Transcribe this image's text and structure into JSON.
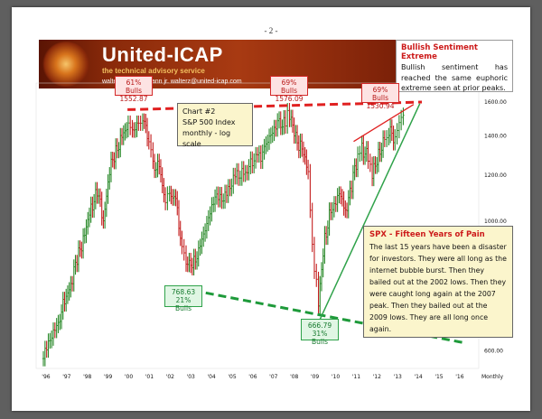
{
  "page_number": "- 2 -",
  "banner": {
    "brand": "United-ICAP",
    "tagline": "the technical advisory service",
    "contact": "walter j. zimmermann jr.   walterz@united-icap.com"
  },
  "sentiment_box": {
    "title": "Bullish Sentiment Extreme",
    "body": "Bullish sentiment has reached the same euphoric extreme seen at prior peaks."
  },
  "chart_label": {
    "line1": "Chart #2",
    "line2": "S&P 500 Index",
    "line3": "monthly - log scale"
  },
  "pain_box": {
    "title": "SPX - Fifteen Years of Pain",
    "body": "The last 15 years have been a disaster for investors. They were all long as the internet bubble burst. Then they bailed out at the 2002 lows. Then they were caught long again at the 2007 peak. Then they bailed out at the 2009 lows. They are all long once again."
  },
  "callouts": {
    "peak_2000": {
      "line1": "61% Bulls",
      "line2": "1552.87"
    },
    "peak_2007": {
      "line1": "69% Bulls",
      "line2": "1576.09"
    },
    "peak_2013": {
      "line1": "69% Bulls",
      "line2": "1530.94"
    },
    "low_2002": {
      "line1": "768.63",
      "line2": "21% Bulls"
    },
    "low_2009": {
      "line1": "666.79",
      "line2": "31% Bulls"
    }
  },
  "colors": {
    "up_bar": "#2b8a2b",
    "down_bar": "#c41e1e",
    "red_line": "#e02020",
    "green_line": "#2fa24a",
    "green_dashed": "#1e9a3a"
  },
  "chart_data": {
    "type": "ohlc",
    "title": "",
    "xlabel": "Monthly",
    "ylabel": "",
    "scale": "log",
    "ylim": [
      560,
      1700
    ],
    "x_tick_labels": [
      "'96",
      "'97",
      "'98",
      "'99",
      "'00",
      "'01",
      "'02",
      "'03",
      "'04",
      "'05",
      "'06",
      "'07",
      "'08",
      "'09",
      "'10",
      "'11",
      "'12",
      "'13",
      "'14",
      "'15",
      "'16"
    ],
    "y_tick_labels": [
      "1600.00",
      "1400.00",
      "1200.00",
      "1000.00",
      "600.00"
    ],
    "y_tick_values": [
      1600,
      1400,
      1200,
      1000,
      600
    ],
    "series": [
      {
        "x": [
          1995.9,
          1996.3,
          1996.7,
          1997.0,
          1997.3,
          1997.6,
          1997.9,
          1998.2,
          1998.5,
          1998.8,
          1999.1,
          1999.4,
          1999.7,
          2000.0,
          2000.2,
          2000.5,
          2000.7,
          2001.0,
          2001.2,
          2001.5,
          2001.8,
          2002.0,
          2002.3,
          2002.6,
          2002.8,
          2003.1,
          2003.4,
          2003.8,
          2004.2,
          2004.6,
          2005.0,
          2005.5,
          2006.0,
          2006.5,
          2006.9,
          2007.3,
          2007.6,
          2007.8,
          2008.1,
          2008.4,
          2008.7,
          2008.9,
          2009.1,
          2009.2,
          2009.5,
          2009.8,
          2010.2,
          2010.5,
          2010.8,
          2011.1,
          2011.3,
          2011.6,
          2011.8,
          2012.1,
          2012.4,
          2012.6,
          2012.9,
          2013.1,
          2013.3
        ],
        "values": [
          600,
          650,
          690,
          740,
          800,
          880,
          950,
          1050,
          1130,
          1000,
          1220,
          1320,
          1390,
          1460,
          1430,
          1470,
          1500,
          1380,
          1250,
          1230,
          1080,
          1120,
          1080,
          900,
          860,
          830,
          900,
          1000,
          1120,
          1110,
          1180,
          1200,
          1270,
          1300,
          1380,
          1460,
          1490,
          1520,
          1380,
          1340,
          1200,
          900,
          780,
          720,
          930,
          1050,
          1120,
          1040,
          1150,
          1300,
          1340,
          1280,
          1190,
          1310,
          1370,
          1420,
          1400,
          1470,
          1520
        ]
      }
    ],
    "annotations": [
      {
        "type": "peak",
        "date": "2000-03",
        "value": 1552.87,
        "label": "61% Bulls"
      },
      {
        "type": "peak",
        "date": "2007-10",
        "value": 1576.09,
        "label": "69% Bulls"
      },
      {
        "type": "peak",
        "date": "2013-03",
        "value": 1530.94,
        "label": "69% Bulls"
      },
      {
        "type": "low",
        "date": "2002-10",
        "value": 768.63,
        "label": "21% Bulls"
      },
      {
        "type": "low",
        "date": "2009-03",
        "value": 666.79,
        "label": "31% Bulls"
      }
    ]
  }
}
